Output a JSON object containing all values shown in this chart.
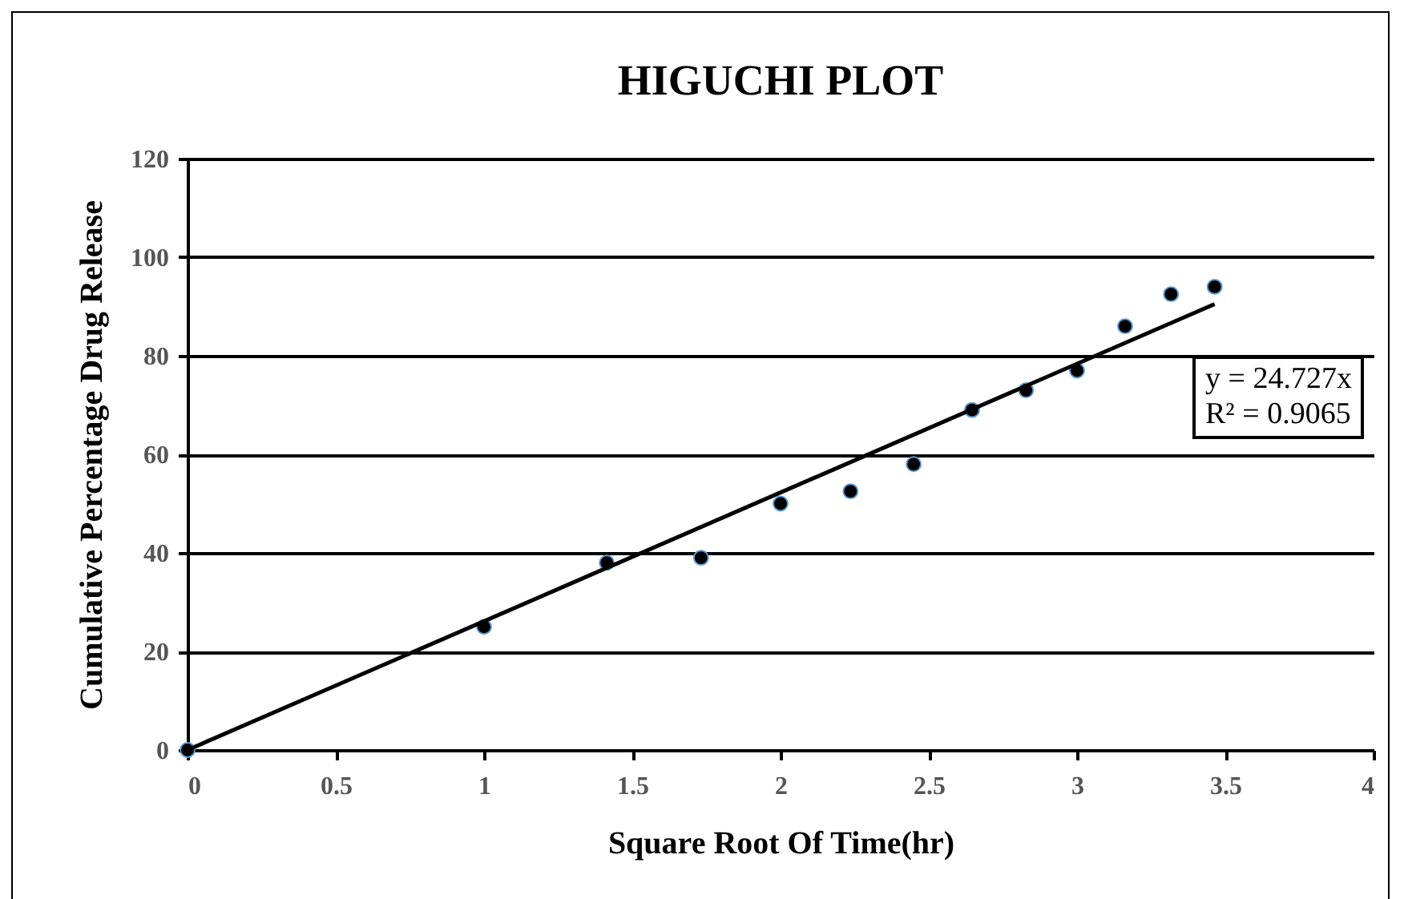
{
  "chart_data": {
    "type": "scatter",
    "title": "HIGUCHI PLOT",
    "xlabel": "Square Root Of Time(hr)",
    "ylabel": "Cumulative Percentage Drug Release",
    "x": [
      0,
      1,
      1.414,
      1.732,
      2,
      2.236,
      2.449,
      2.646,
      2.828,
      3,
      3.162,
      3.317,
      3.464
    ],
    "series": [
      {
        "color": "#000000",
        "marker": "circle",
        "values": [
          0,
          25,
          38,
          39,
          50,
          52.5,
          58,
          69,
          73,
          77,
          86,
          92.5,
          94
        ]
      },
      {
        "type": "line",
        "color": "#000000",
        "x": [
          0,
          3.464
        ],
        "values": [
          0,
          90.5
        ]
      }
    ],
    "annotations": [
      "y = 24.727x",
      "R² = 0.9065"
    ],
    "xlim": [
      0,
      4
    ],
    "xticks": [
      0,
      0.5,
      1,
      1.5,
      2,
      2.5,
      3,
      3.5,
      4
    ],
    "ylim": [
      0,
      120
    ],
    "yticks": [
      0,
      20,
      40,
      60,
      80,
      100,
      120
    ],
    "grid": "y"
  }
}
